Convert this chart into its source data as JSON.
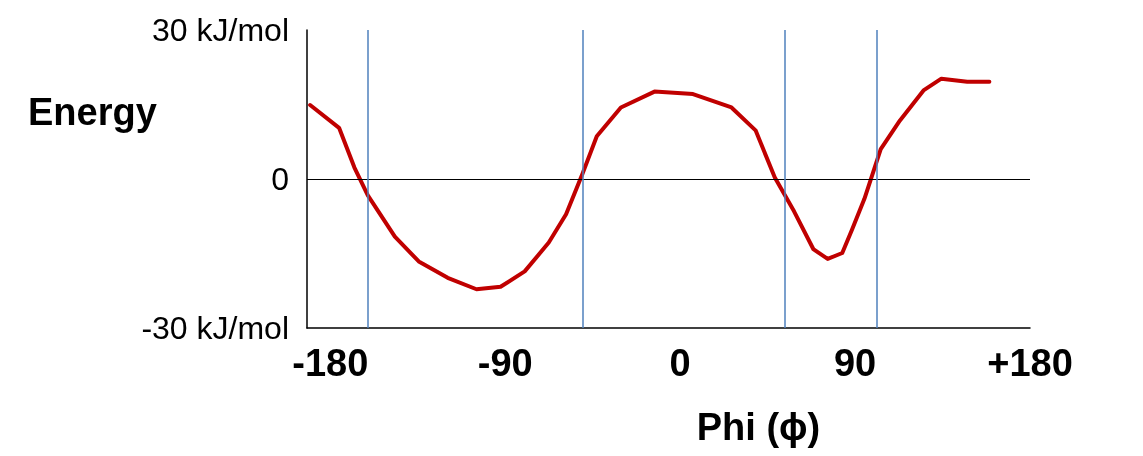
{
  "chart_data": {
    "type": "line",
    "xlabel": "Phi (ϕ)",
    "ylabel": "Energy",
    "x": [
      -190.4,
      -175.5,
      -167.6,
      -160.7,
      -146.8,
      -134.5,
      -119.6,
      -104.8,
      -92.4,
      -80,
      -67.6,
      -58.7,
      -50.3,
      -42.9,
      -30.5,
      -13.2,
      6.6,
      26.4,
      38.8,
      48.7,
      58.6,
      68.5,
      75.9,
      83.4,
      88.3,
      94.8,
      103.2,
      113.1,
      125.4,
      134.4,
      147.7,
      159.1
    ],
    "series": [
      {
        "color": "#c00000",
        "values": [
          14.9,
          10.3,
          2.3,
          -3.3,
          -11.6,
          -16.6,
          -19.9,
          -22.2,
          -21.7,
          -18.6,
          -12.8,
          -7.1,
          1.0,
          8.6,
          14.4,
          17.6,
          17.1,
          14.4,
          9.8,
          0.3,
          -6.5,
          -14.1,
          -16.1,
          -14.9,
          -10.3,
          -4.0,
          6.0,
          11.8,
          17.9,
          20.2,
          19.6,
          19.6
        ]
      }
    ],
    "xlim": [
      -192,
      180
    ],
    "xticks": [
      -180,
      -90,
      0,
      90,
      {
        "value": 180,
        "label": "+180"
      }
    ],
    "ylim": [
      -30,
      30
    ],
    "yticks": [
      {
        "value": -30,
        "label": "-30 kJ/mol"
      },
      0,
      {
        "value": 30,
        "label": "30 kJ/mol"
      }
    ],
    "ref_lines": [
      {
        "axis": "y",
        "value": 0,
        "color": "#000000"
      },
      {
        "axis": "x",
        "value": -161,
        "color": "#4f81bd"
      },
      {
        "axis": "x",
        "value": -50,
        "color": "#4f81bd"
      },
      {
        "axis": "x",
        "value": 54,
        "color": "#4f81bd"
      },
      {
        "axis": "x",
        "value": 101,
        "color": "#4f81bd"
      }
    ],
    "grid": false,
    "marker": "none",
    "line_style": "solid"
  }
}
